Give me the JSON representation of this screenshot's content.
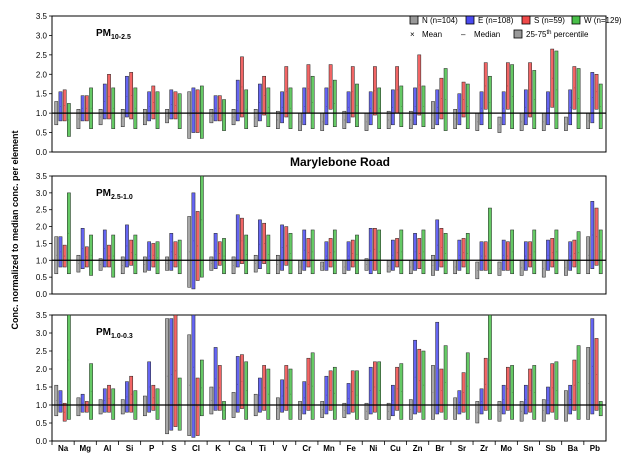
{
  "chart_data": {
    "type": "bar",
    "title": "Marylebone Road",
    "ylabel": "Conc. normalized to median conc. per element",
    "ylim": [
      0,
      3.5
    ],
    "yticks": [
      "0.0",
      "0.5",
      "1.0",
      "1.5",
      "2.0",
      "2.5",
      "3.0",
      "3.5"
    ],
    "categories": [
      "Na",
      "Mg",
      "Al",
      "Si",
      "P",
      "S",
      "Cl",
      "K",
      "Ca",
      "Ti",
      "V",
      "Cr",
      "Mn",
      "Fe",
      "Ni",
      "Cu",
      "Zn",
      "Br",
      "Sr",
      "Zr",
      "Mo",
      "Sn",
      "Sb",
      "Ba",
      "Pb"
    ],
    "legend": {
      "series": [
        {
          "key": "N",
          "label": "N (n=104)",
          "color": "#999999"
        },
        {
          "key": "E",
          "label": "E (n=108)",
          "color": "#4a4af0"
        },
        {
          "key": "S",
          "label": "S (n=59)",
          "color": "#f04a4a"
        },
        {
          "key": "W",
          "label": "W (n=129)",
          "color": "#4ac04a"
        }
      ],
      "mean_label": "Mean",
      "median_label": "Median",
      "percentile_label": "25-75",
      "percentile_sup": "th",
      "percentile_suffix": " percentile",
      "mean_symbol": "×",
      "median_symbol": "–"
    },
    "panels": [
      {
        "label_main": "PM",
        "label_sub": "10-2.5",
        "series": [
          {
            "name": "N",
            "low": [
              0.7,
              0.6,
              0.7,
              0.65,
              0.7,
              0.75,
              0.35,
              0.75,
              0.7,
              0.65,
              0.6,
              0.55,
              0.55,
              0.6,
              0.55,
              0.6,
              0.6,
              0.6,
              0.6,
              0.55,
              0.5,
              0.55,
              0.55,
              0.55,
              0.6
            ],
            "high": [
              1.3,
              1.1,
              1.1,
              1.1,
              1.1,
              1.1,
              1.55,
              1.1,
              1.1,
              1.1,
              1.05,
              1.0,
              1.0,
              1.05,
              1.0,
              1.05,
              1.05,
              1.3,
              1.1,
              1.0,
              0.9,
              1.0,
              1.0,
              0.9,
              1.0
            ]
          },
          {
            "name": "E",
            "low": [
              0.8,
              0.8,
              0.85,
              0.9,
              0.8,
              0.85,
              0.5,
              0.8,
              0.8,
              0.8,
              0.75,
              0.7,
              0.7,
              0.75,
              0.7,
              0.7,
              0.7,
              0.7,
              0.7,
              0.7,
              0.7,
              0.7,
              0.7,
              0.7,
              0.75
            ],
            "high": [
              1.55,
              1.45,
              1.75,
              1.95,
              1.55,
              1.6,
              1.65,
              1.45,
              1.85,
              1.75,
              1.55,
              1.65,
              1.65,
              1.55,
              1.55,
              1.6,
              1.65,
              1.6,
              1.5,
              1.55,
              1.55,
              1.6,
              1.55,
              1.6,
              2.05
            ]
          },
          {
            "name": "S",
            "low": [
              0.8,
              0.8,
              0.85,
              0.85,
              0.85,
              0.85,
              0.5,
              0.8,
              0.9,
              0.95,
              0.9,
              1.0,
              1.1,
              0.9,
              0.95,
              1.0,
              0.95,
              0.85,
              0.9,
              1.1,
              1.1,
              0.9,
              1.15,
              1.1,
              1.1
            ],
            "high": [
              1.6,
              1.45,
              2.0,
              2.05,
              1.7,
              1.55,
              1.6,
              1.45,
              2.45,
              1.95,
              2.2,
              2.25,
              2.25,
              2.2,
              2.2,
              2.2,
              2.5,
              1.9,
              1.8,
              2.3,
              2.3,
              2.3,
              2.65,
              2.2,
              2.0
            ]
          },
          {
            "name": "W",
            "low": [
              0.4,
              0.6,
              0.6,
              0.6,
              0.6,
              0.6,
              0.35,
              0.55,
              0.6,
              0.65,
              0.6,
              0.6,
              0.65,
              0.65,
              0.6,
              0.65,
              0.65,
              0.55,
              0.6,
              0.6,
              0.6,
              0.6,
              0.6,
              0.6,
              0.6
            ],
            "high": [
              1.25,
              1.65,
              1.65,
              1.65,
              1.55,
              1.5,
              1.7,
              1.35,
              1.6,
              1.65,
              1.65,
              1.95,
              1.85,
              1.75,
              1.65,
              1.7,
              1.7,
              2.15,
              1.75,
              1.95,
              2.25,
              2.1,
              2.6,
              2.15,
              1.75
            ]
          }
        ]
      },
      {
        "label_main": "PM",
        "label_sub": "2.5-1.0",
        "series": [
          {
            "name": "N",
            "low": [
              0.6,
              0.65,
              0.7,
              0.6,
              0.65,
              0.7,
              0.2,
              0.7,
              0.6,
              0.65,
              0.6,
              0.6,
              0.7,
              0.6,
              0.7,
              0.65,
              0.6,
              0.55,
              0.6,
              0.45,
              0.55,
              0.55,
              0.5,
              0.55,
              0.6
            ],
            "high": [
              1.7,
              1.15,
              1.05,
              1.1,
              1.1,
              1.1,
              2.3,
              1.1,
              1.1,
              1.15,
              1.15,
              1.0,
              0.95,
              1.0,
              1.05,
              1.0,
              1.0,
              1.15,
              1.0,
              0.95,
              0.95,
              1.0,
              1.0,
              1.0,
              1.7
            ]
          },
          {
            "name": "E",
            "low": [
              0.8,
              0.75,
              0.8,
              0.8,
              0.7,
              0.7,
              0.15,
              0.75,
              0.8,
              0.75,
              0.7,
              0.7,
              0.7,
              0.7,
              0.6,
              0.7,
              0.7,
              0.7,
              0.7,
              0.7,
              0.7,
              0.7,
              0.7,
              0.7,
              0.75
            ],
            "high": [
              1.7,
              1.95,
              1.9,
              2.05,
              1.55,
              1.8,
              3.0,
              1.8,
              2.35,
              2.2,
              2.05,
              1.9,
              1.55,
              1.55,
              1.95,
              1.6,
              1.8,
              2.2,
              1.6,
              1.55,
              1.6,
              1.55,
              1.6,
              1.55,
              2.75
            ]
          },
          {
            "name": "S",
            "low": [
              0.8,
              0.8,
              0.8,
              0.85,
              0.8,
              0.8,
              0.4,
              0.85,
              0.9,
              0.9,
              0.85,
              0.8,
              0.8,
              0.8,
              0.7,
              0.8,
              0.75,
              0.8,
              0.8,
              0.7,
              0.7,
              0.8,
              0.8,
              0.8,
              0.85
            ],
            "high": [
              1.45,
              1.4,
              1.45,
              1.6,
              1.5,
              1.55,
              2.45,
              1.55,
              2.25,
              2.1,
              2.0,
              1.65,
              1.65,
              1.6,
              1.95,
              1.65,
              1.65,
              1.95,
              1.65,
              1.55,
              1.55,
              1.55,
              1.65,
              1.6,
              2.55
            ]
          },
          {
            "name": "W",
            "low": [
              0.6,
              0.55,
              0.5,
              0.6,
              0.6,
              0.6,
              0.5,
              0.6,
              0.6,
              0.6,
              0.6,
              0.6,
              0.6,
              0.6,
              0.6,
              0.6,
              0.6,
              0.6,
              0.6,
              0.6,
              0.6,
              0.6,
              0.6,
              0.6,
              0.6
            ],
            "high": [
              3.0,
              1.75,
              1.75,
              1.75,
              1.55,
              1.6,
              3.9,
              1.65,
              1.75,
              1.75,
              1.8,
              1.9,
              1.9,
              1.75,
              1.9,
              1.9,
              1.9,
              1.8,
              1.8,
              2.55,
              1.9,
              1.9,
              1.9,
              1.85,
              1.9
            ]
          }
        ]
      },
      {
        "label_main": "PM",
        "label_sub": "1.0-0.3",
        "series": [
          {
            "name": "N",
            "low": [
              0.7,
              0.7,
              0.75,
              0.75,
              0.7,
              0.2,
              0.15,
              0.75,
              0.65,
              0.7,
              0.6,
              0.6,
              0.65,
              0.65,
              0.6,
              0.6,
              0.6,
              0.6,
              0.6,
              0.5,
              0.55,
              0.55,
              0.55,
              0.55,
              0.6
            ],
            "high": [
              1.55,
              1.2,
              1.15,
              1.15,
              1.25,
              3.4,
              2.95,
              1.5,
              1.35,
              1.3,
              1.2,
              1.1,
              1.1,
              1.05,
              1.05,
              1.05,
              1.15,
              2.1,
              1.2,
              1.1,
              1.1,
              1.1,
              1.15,
              1.4,
              2.6
            ]
          },
          {
            "name": "E",
            "low": [
              0.8,
              0.8,
              0.8,
              0.8,
              0.8,
              0.3,
              0.1,
              0.85,
              0.8,
              0.8,
              0.8,
              0.75,
              0.75,
              0.75,
              0.75,
              0.7,
              0.75,
              0.75,
              0.75,
              0.75,
              0.75,
              0.75,
              0.75,
              0.75,
              0.75
            ],
            "high": [
              1.4,
              1.3,
              1.45,
              1.65,
              2.2,
              3.4,
              4.0,
              2.6,
              2.35,
              1.75,
              1.7,
              1.65,
              1.8,
              1.6,
              2.05,
              1.55,
              2.8,
              3.3,
              1.4,
              1.45,
              1.55,
              1.55,
              1.5,
              1.55,
              3.4
            ]
          },
          {
            "name": "S",
            "low": [
              0.55,
              0.8,
              0.8,
              0.8,
              0.85,
              0.4,
              0.15,
              0.85,
              0.9,
              0.85,
              0.85,
              0.85,
              0.85,
              0.8,
              0.8,
              0.85,
              0.8,
              0.8,
              0.8,
              0.85,
              0.85,
              0.8,
              0.8,
              0.85,
              0.85
            ],
            "high": [
              1.05,
              1.1,
              1.55,
              1.8,
              1.55,
              3.5,
              1.75,
              2.1,
              2.4,
              2.1,
              2.1,
              2.3,
              1.95,
              1.95,
              2.2,
              2.05,
              2.55,
              2.0,
              1.9,
              2.3,
              2.05,
              2.0,
              2.15,
              2.25,
              2.85
            ]
          },
          {
            "name": "W",
            "low": [
              0.6,
              0.6,
              0.6,
              0.6,
              0.6,
              0.3,
              0.7,
              0.6,
              0.6,
              0.6,
              0.6,
              0.6,
              0.6,
              0.6,
              0.6,
              0.6,
              0.6,
              0.6,
              0.6,
              0.6,
              0.6,
              0.6,
              0.6,
              0.6,
              0.7
            ],
            "high": [
              3.9,
              2.15,
              1.45,
              1.4,
              1.45,
              1.75,
              2.25,
              1.1,
              2.2,
              2.0,
              2.0,
              2.45,
              2.05,
              1.95,
              2.2,
              2.15,
              2.5,
              2.65,
              2.45,
              3.9,
              2.1,
              2.1,
              2.2,
              2.65,
              1.1
            ]
          }
        ]
      }
    ]
  }
}
